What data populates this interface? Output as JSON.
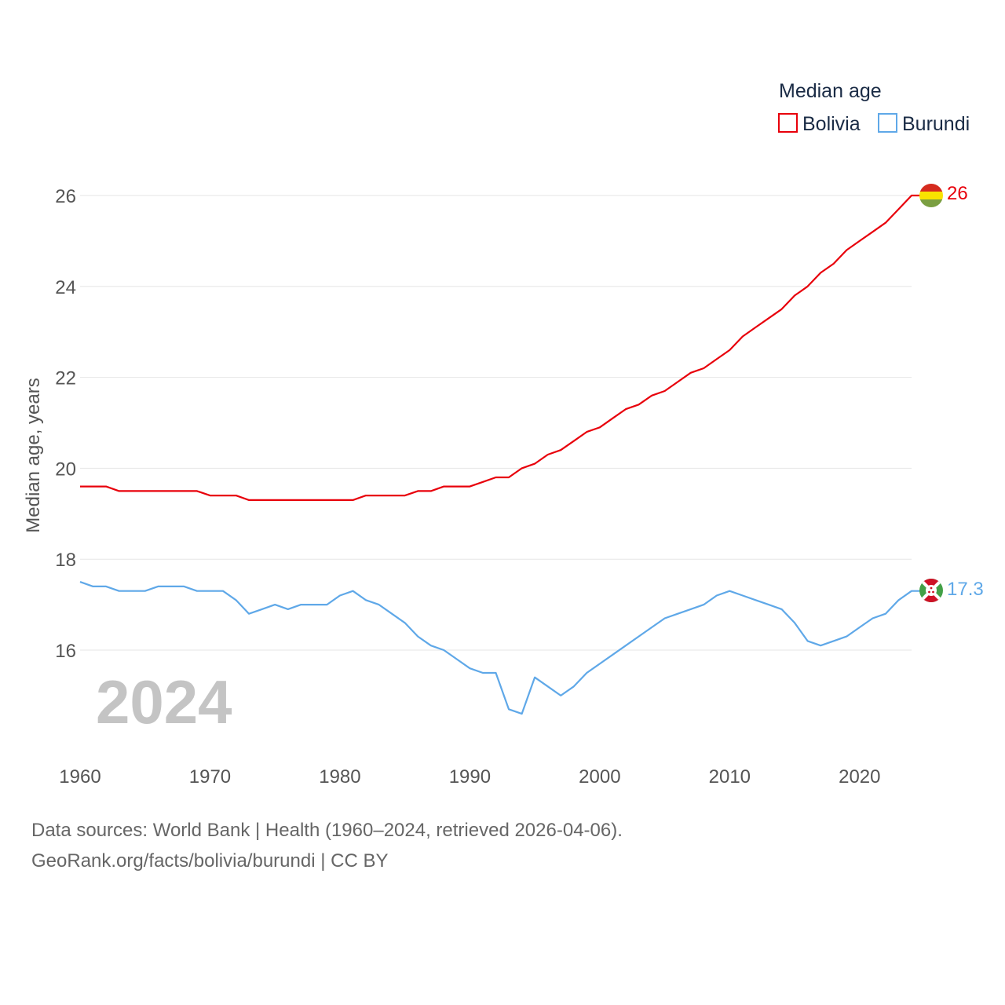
{
  "chart_data": {
    "type": "line",
    "legend_title": "Median age",
    "ylabel": "Median age, years",
    "xlabel": "",
    "year_label": "2024",
    "xlim": [
      1960,
      2024
    ],
    "ylim": [
      14,
      27
    ],
    "x_ticks": [
      1960,
      1970,
      1980,
      1990,
      2000,
      2010,
      2020
    ],
    "y_ticks": [
      16,
      18,
      20,
      22,
      24,
      26
    ],
    "x": [
      1960,
      1961,
      1962,
      1963,
      1964,
      1965,
      1966,
      1967,
      1968,
      1969,
      1970,
      1971,
      1972,
      1973,
      1974,
      1975,
      1976,
      1977,
      1978,
      1979,
      1980,
      1981,
      1982,
      1983,
      1984,
      1985,
      1986,
      1987,
      1988,
      1989,
      1990,
      1991,
      1992,
      1993,
      1994,
      1995,
      1996,
      1997,
      1998,
      1999,
      2000,
      2001,
      2002,
      2003,
      2004,
      2005,
      2006,
      2007,
      2008,
      2009,
      2010,
      2011,
      2012,
      2013,
      2014,
      2015,
      2016,
      2017,
      2018,
      2019,
      2020,
      2021,
      2022,
      2023,
      2024
    ],
    "series": [
      {
        "name": "Bolivia",
        "color": "#e8000b",
        "end_label": "26",
        "flag": "bolivia-flag",
        "values": [
          19.6,
          19.6,
          19.6,
          19.5,
          19.5,
          19.5,
          19.5,
          19.5,
          19.5,
          19.5,
          19.4,
          19.4,
          19.4,
          19.3,
          19.3,
          19.3,
          19.3,
          19.3,
          19.3,
          19.3,
          19.3,
          19.3,
          19.4,
          19.4,
          19.4,
          19.4,
          19.5,
          19.5,
          19.6,
          19.6,
          19.6,
          19.7,
          19.8,
          19.8,
          20.0,
          20.1,
          20.3,
          20.4,
          20.6,
          20.8,
          20.9,
          21.1,
          21.3,
          21.4,
          21.6,
          21.7,
          21.9,
          22.1,
          22.2,
          22.4,
          22.6,
          22.9,
          23.1,
          23.3,
          23.5,
          23.8,
          24.0,
          24.3,
          24.5,
          24.8,
          25.0,
          25.2,
          25.4,
          25.7,
          26.0
        ]
      },
      {
        "name": "Burundi",
        "color": "#5fa8e8",
        "end_label": "17.3",
        "flag": "burundi-flag",
        "values": [
          17.5,
          17.4,
          17.4,
          17.3,
          17.3,
          17.3,
          17.4,
          17.4,
          17.4,
          17.3,
          17.3,
          17.3,
          17.1,
          16.8,
          16.9,
          17.0,
          16.9,
          17.0,
          17.0,
          17.0,
          17.2,
          17.3,
          17.1,
          17.0,
          16.8,
          16.6,
          16.3,
          16.1,
          16.0,
          15.8,
          15.6,
          15.5,
          15.5,
          14.7,
          14.6,
          15.4,
          15.2,
          15.0,
          15.2,
          15.5,
          15.7,
          15.9,
          16.1,
          16.3,
          16.5,
          16.7,
          16.8,
          16.9,
          17.0,
          17.2,
          17.3,
          17.2,
          17.1,
          17.0,
          16.9,
          16.6,
          16.2,
          16.1,
          16.2,
          16.3,
          16.5,
          16.7,
          16.8,
          17.1,
          17.3
        ]
      }
    ]
  },
  "footer": {
    "sources": "Data sources: World Bank | Health (1960–2024, retrieved 2026-04-06).",
    "credit": "GeoRank.org/facts/bolivia/burundi | CC BY"
  }
}
